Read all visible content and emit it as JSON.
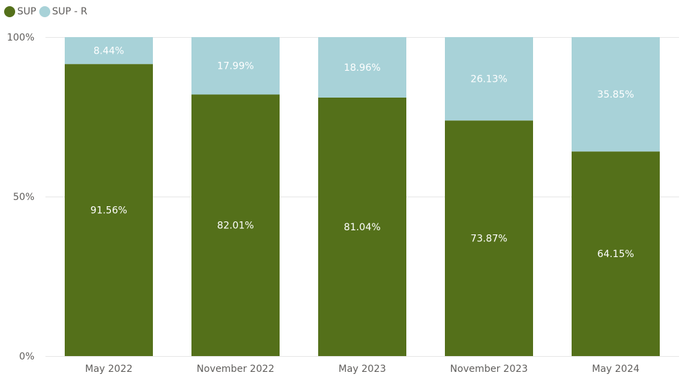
{
  "chart_data": {
    "type": "bar",
    "stacked": "percent",
    "categories": [
      "May 2022",
      "November 2022",
      "May 2023",
      "November 2023",
      "May 2024"
    ],
    "series": [
      {
        "name": "SUP",
        "color": "#54701a",
        "values": [
          91.56,
          82.01,
          81.04,
          73.87,
          64.15
        ],
        "labels": [
          "91.56%",
          "82.01%",
          "81.04%",
          "73.87%",
          "64.15%"
        ]
      },
      {
        "name": "SUP - R",
        "color": "#a8d2d8",
        "values": [
          8.44,
          17.99,
          18.96,
          26.13,
          35.85
        ],
        "labels": [
          "8.44%",
          "17.99%",
          "18.96%",
          "26.13%",
          "35.85%"
        ]
      }
    ],
    "y_ticks": [
      "0%",
      "50%",
      "100%"
    ],
    "ylim": [
      0,
      100
    ],
    "grid": true,
    "legend": "top-left"
  }
}
